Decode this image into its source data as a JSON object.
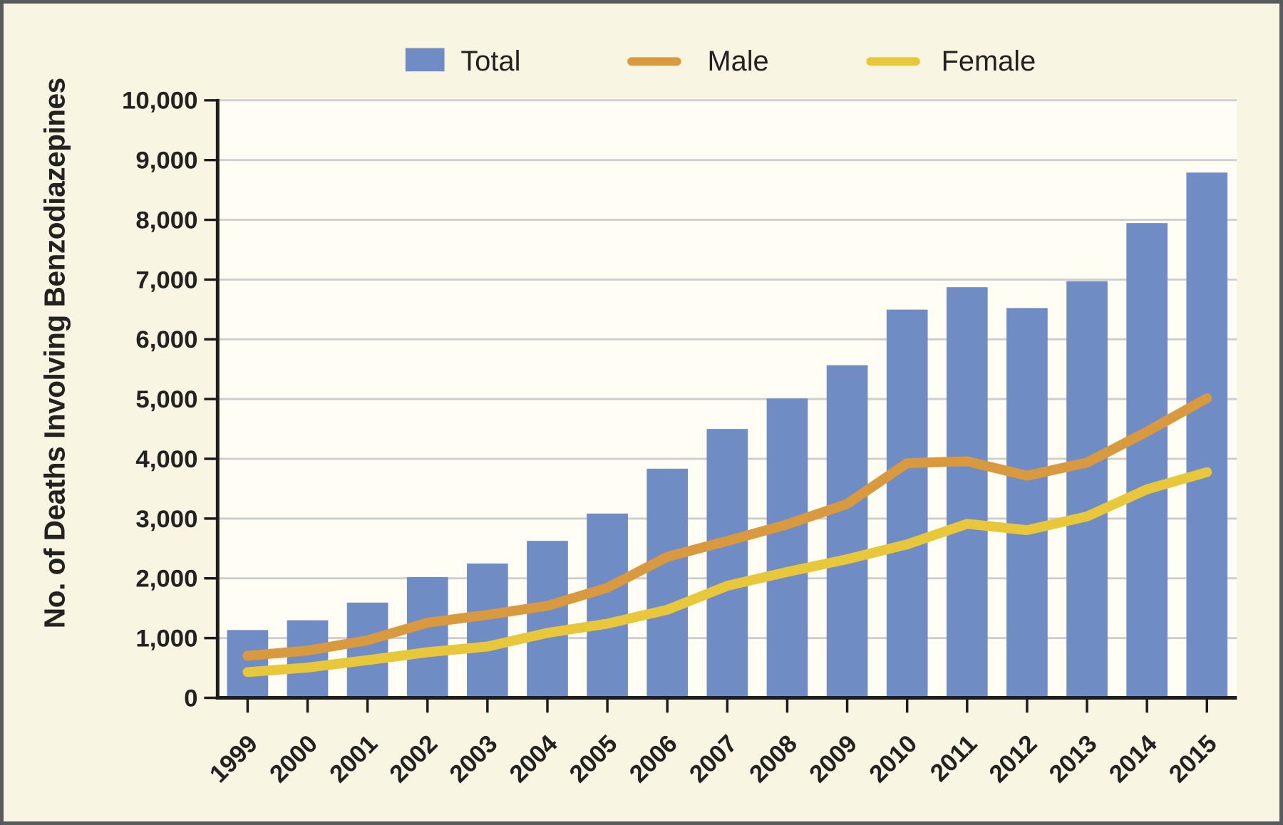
{
  "figure": {
    "background_color": "#f8f5e3",
    "plot_background_color": "#fffdf4",
    "border_color": "#595a5e",
    "axis_color": "#1e1d1b",
    "gridline_color": "#cfcfcf",
    "text_color": "#242220"
  },
  "legend": {
    "items": [
      {
        "label": "Total",
        "swatch": "square-icon",
        "color": "#6f8cc4"
      },
      {
        "label": "Male",
        "swatch": "line-icon",
        "color": "#d9993f"
      },
      {
        "label": "Female",
        "swatch": "line-icon",
        "color": "#e8c83a"
      }
    ]
  },
  "chart_data": {
    "type": "bar",
    "subtype": "bar-and-line-combo",
    "title": "",
    "xlabel": "",
    "ylabel": "No. of Deaths Involving Benzodiazepines",
    "ylim": [
      0,
      10000
    ],
    "ytick_step": 1000,
    "ytick_labels": [
      "0",
      "1,000",
      "2,000",
      "3,000",
      "4,000",
      "5,000",
      "6,000",
      "7,000",
      "8,000",
      "9,000",
      "10,000"
    ],
    "grid": "horizontal",
    "legend_position": "top",
    "categories": [
      "1999",
      "2000",
      "2001",
      "2002",
      "2003",
      "2004",
      "2005",
      "2006",
      "2007",
      "2008",
      "2009",
      "2010",
      "2011",
      "2012",
      "2013",
      "2014",
      "2015"
    ],
    "series": [
      {
        "name": "Total",
        "type": "bar",
        "color": "#6f8cc4",
        "values": [
          1135,
          1298,
          1594,
          2022,
          2248,
          2627,
          3084,
          3835,
          4500,
          5010,
          5567,
          6497,
          6872,
          6524,
          6973,
          7945,
          8791
        ]
      },
      {
        "name": "Male",
        "type": "line",
        "color": "#d9993f",
        "values": [
          704,
          791,
          963,
          1258,
          1389,
          1540,
          1842,
          2361,
          2625,
          2903,
          3246,
          3928,
          3960,
          3718,
          3937,
          4455,
          5014
        ]
      },
      {
        "name": "Female",
        "type": "line",
        "color": "#e8c83a",
        "values": [
          431,
          507,
          631,
          764,
          859,
          1087,
          1242,
          1474,
          1875,
          2107,
          2321,
          2569,
          2912,
          2806,
          3036,
          3490,
          3777
        ]
      }
    ]
  }
}
